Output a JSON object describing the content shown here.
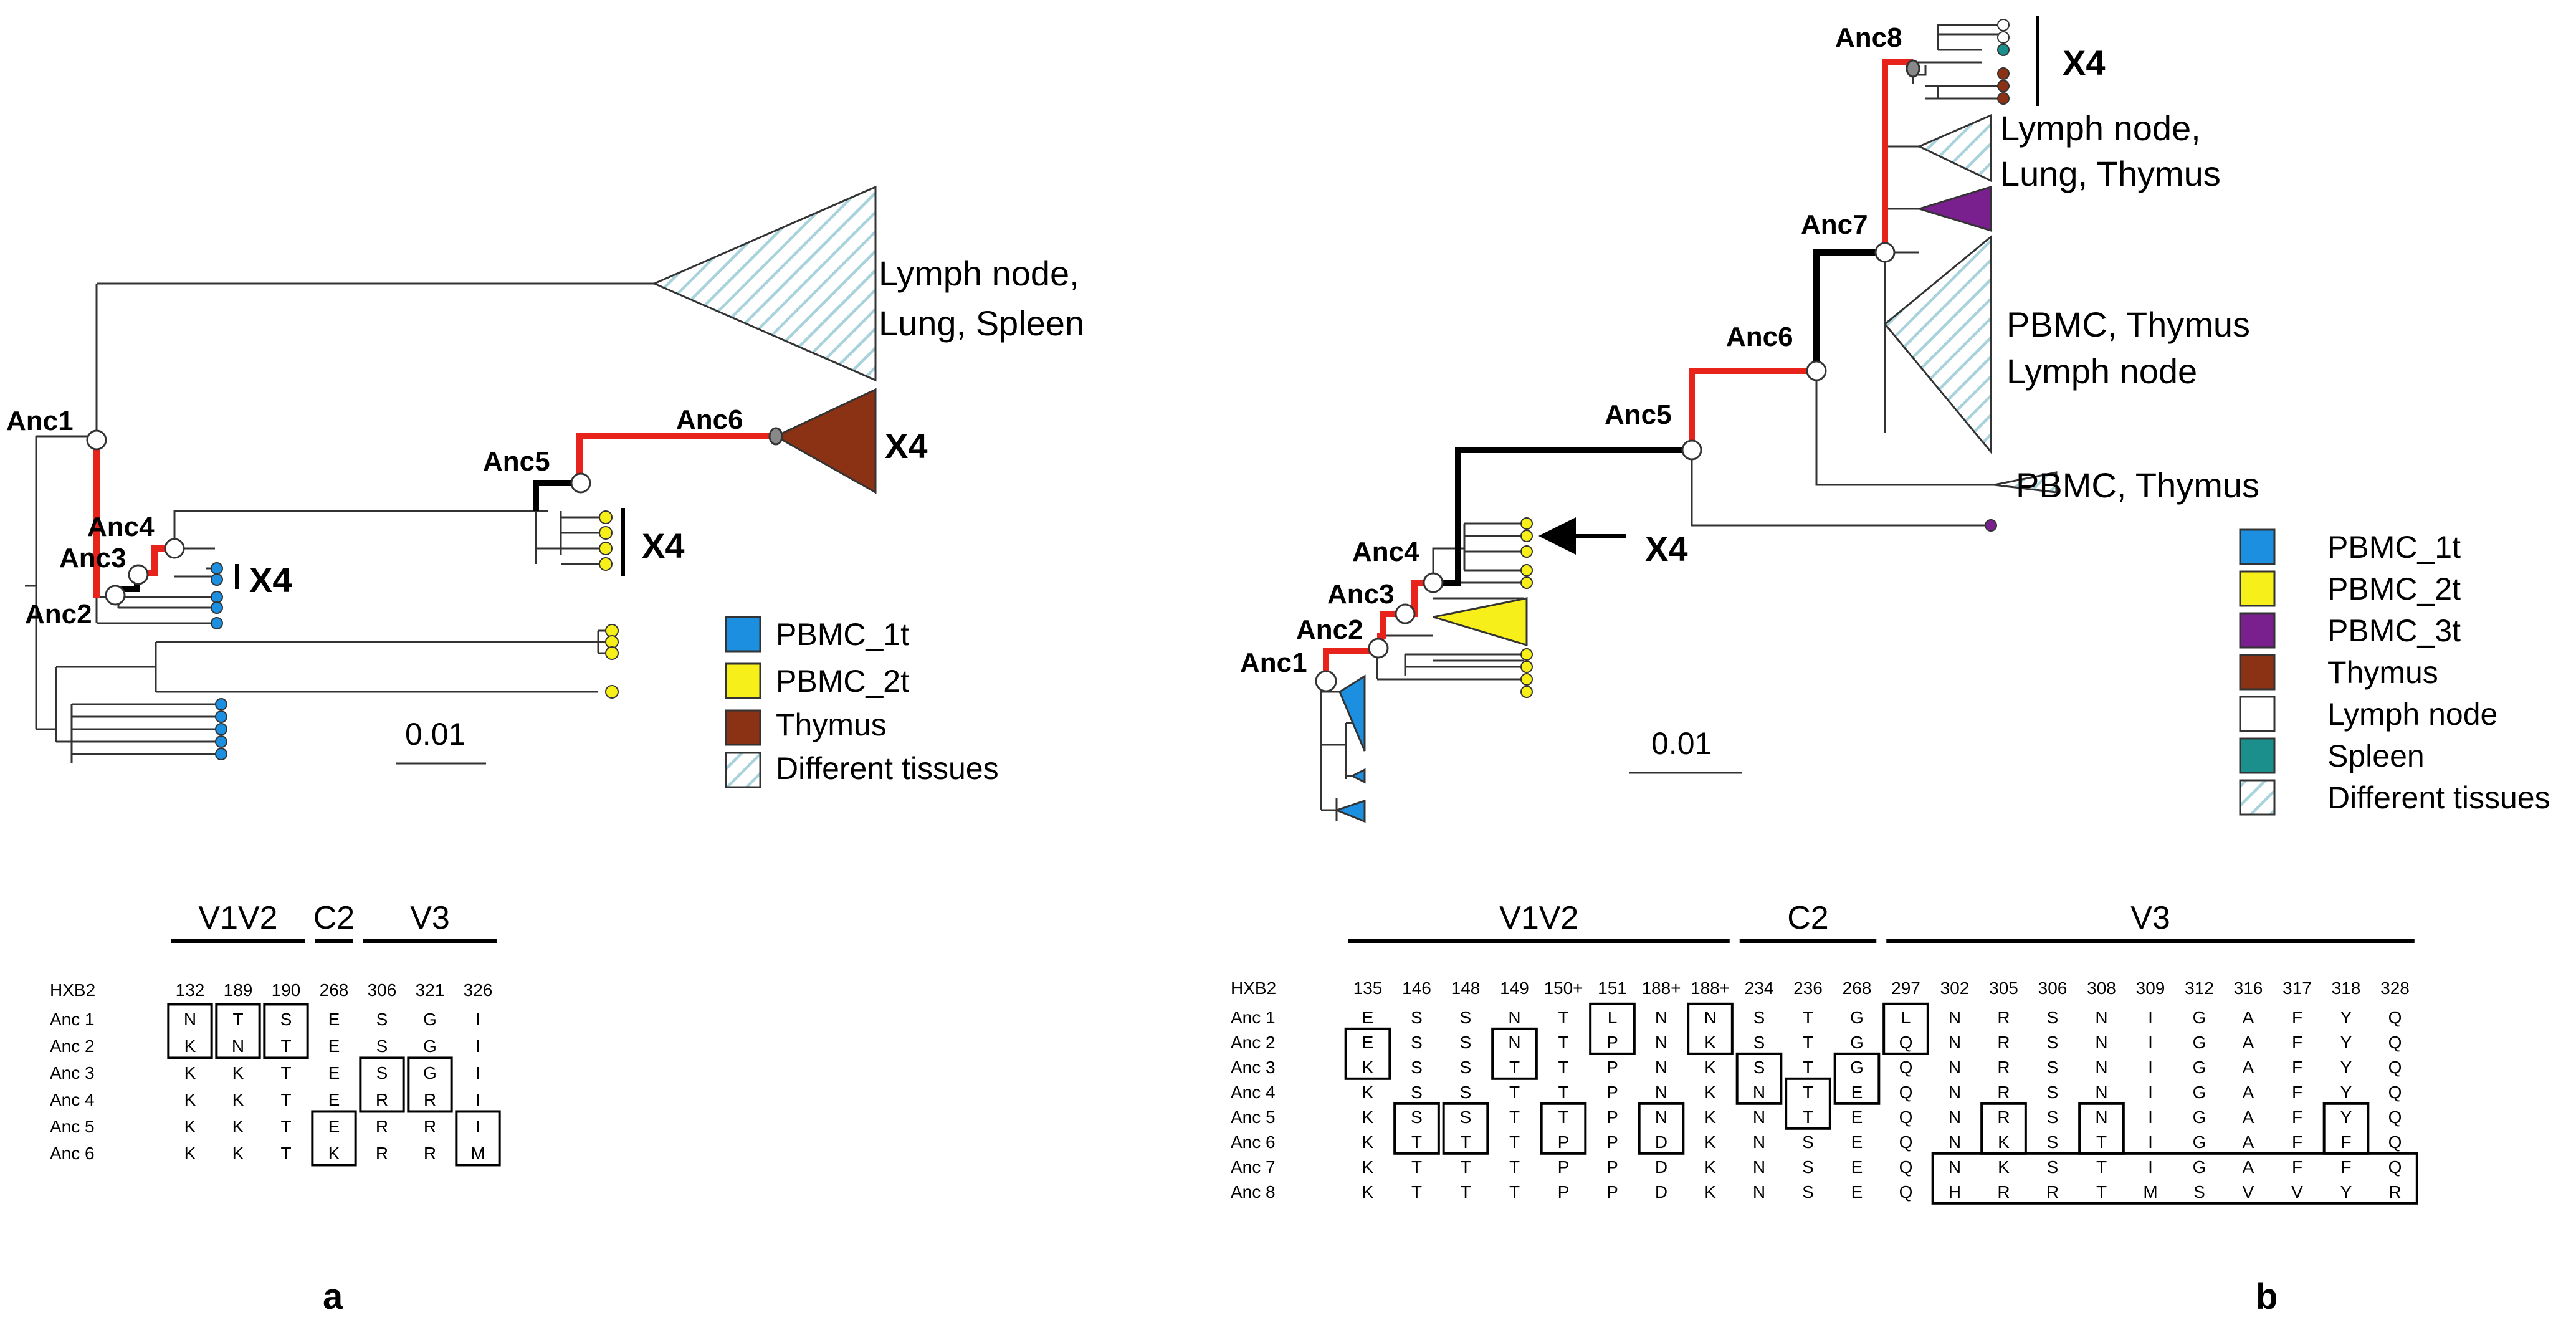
{
  "colors": {
    "pbmc_1t": "#1d8fe0",
    "pbmc_2t": "#f7ef1a",
    "pbmc_3t": "#7a1f8e",
    "thymus": "#8b3214",
    "lymph_node": "#ffffff",
    "spleen": "#1b8f8c",
    "different_tissues": "#d9ecf0",
    "ancestral_branch": "#e8231b"
  },
  "panel_a": {
    "panel_label": "a",
    "nodes": {
      "anc1": "Anc1",
      "anc2": "Anc2",
      "anc3": "Anc3",
      "anc4": "Anc4",
      "anc5": "Anc5",
      "anc6": "Anc6"
    },
    "x4_labels": [
      "X4",
      "X4",
      "X4"
    ],
    "tissue_lines": [
      "Lymph node,",
      "Lung, Spleen"
    ],
    "scale": "0.01",
    "legend": [
      "PBMC_1t",
      "PBMC_2t",
      "Thymus",
      "Different tissues"
    ],
    "regions": [
      "V1V2",
      "C2",
      "V3"
    ],
    "ref_label": "HXB2",
    "positions": [
      "132",
      "189",
      "190",
      "268",
      "306",
      "321",
      "326"
    ],
    "rows": [
      {
        "name": "Anc 1",
        "residues": [
          "N",
          "T",
          "S",
          "E",
          "S",
          "G",
          "I"
        ]
      },
      {
        "name": "Anc 2",
        "residues": [
          "K",
          "N",
          "T",
          "E",
          "S",
          "G",
          "I"
        ]
      },
      {
        "name": "Anc 3",
        "residues": [
          "K",
          "K",
          "T",
          "E",
          "S",
          "G",
          "I"
        ]
      },
      {
        "name": "Anc 4",
        "residues": [
          "K",
          "K",
          "T",
          "E",
          "R",
          "R",
          "I"
        ]
      },
      {
        "name": "Anc 5",
        "residues": [
          "K",
          "K",
          "T",
          "E",
          "R",
          "R",
          "I"
        ]
      },
      {
        "name": "Anc 6",
        "residues": [
          "K",
          "K",
          "T",
          "K",
          "R",
          "R",
          "M"
        ]
      }
    ]
  },
  "panel_b": {
    "panel_label": "b",
    "nodes": {
      "anc1": "Anc1",
      "anc2": "Anc2",
      "anc3": "Anc3",
      "anc4": "Anc4",
      "anc5": "Anc5",
      "anc6": "Anc6",
      "anc7": "Anc7",
      "anc8": "Anc8"
    },
    "x4_labels": [
      "X4",
      "X4"
    ],
    "tissue_groups": [
      [
        "Lymph node,",
        "Lung, Thymus"
      ],
      [
        "PBMC, Thymus",
        "Lymph node"
      ],
      [
        "PBMC, Thymus"
      ]
    ],
    "scale": "0.01",
    "legend": [
      "PBMC_1t",
      "PBMC_2t",
      "PBMC_3t",
      "Thymus",
      "Lymph node",
      "Spleen",
      "Different tissues"
    ],
    "regions": [
      "V1V2",
      "C2",
      "V3"
    ],
    "ref_label": "HXB2",
    "positions": [
      "135",
      "146",
      "148",
      "149",
      "150+",
      "151",
      "188+",
      "188+",
      "234",
      "236",
      "268",
      "297",
      "302",
      "305",
      "306",
      "308",
      "309",
      "312",
      "316",
      "317",
      "318",
      "328"
    ],
    "rows": [
      {
        "name": "Anc 1",
        "residues": [
          "E",
          "S",
          "S",
          "N",
          "T",
          "L",
          "N",
          "N",
          "S",
          "T",
          "G",
          "L",
          "N",
          "R",
          "S",
          "N",
          "I",
          "G",
          "A",
          "F",
          "Y",
          "Q"
        ]
      },
      {
        "name": "Anc 2",
        "residues": [
          "E",
          "S",
          "S",
          "N",
          "T",
          "P",
          "N",
          "K",
          "S",
          "T",
          "G",
          "Q",
          "N",
          "R",
          "S",
          "N",
          "I",
          "G",
          "A",
          "F",
          "Y",
          "Q"
        ]
      },
      {
        "name": "Anc 3",
        "residues": [
          "K",
          "S",
          "S",
          "T",
          "T",
          "P",
          "N",
          "K",
          "S",
          "T",
          "G",
          "Q",
          "N",
          "R",
          "S",
          "N",
          "I",
          "G",
          "A",
          "F",
          "Y",
          "Q"
        ]
      },
      {
        "name": "Anc 4",
        "residues": [
          "K",
          "S",
          "S",
          "T",
          "T",
          "P",
          "N",
          "K",
          "N",
          "T",
          "E",
          "Q",
          "N",
          "R",
          "S",
          "N",
          "I",
          "G",
          "A",
          "F",
          "Y",
          "Q"
        ]
      },
      {
        "name": "Anc 5",
        "residues": [
          "K",
          "S",
          "S",
          "T",
          "T",
          "P",
          "N",
          "K",
          "N",
          "T",
          "E",
          "Q",
          "N",
          "R",
          "S",
          "N",
          "I",
          "G",
          "A",
          "F",
          "Y",
          "Q"
        ]
      },
      {
        "name": "Anc 6",
        "residues": [
          "K",
          "T",
          "T",
          "T",
          "P",
          "P",
          "D",
          "K",
          "N",
          "S",
          "E",
          "Q",
          "N",
          "K",
          "S",
          "T",
          "I",
          "G",
          "A",
          "F",
          "F",
          "Q"
        ]
      },
      {
        "name": "Anc 7",
        "residues": [
          "K",
          "T",
          "T",
          "T",
          "P",
          "P",
          "D",
          "K",
          "N",
          "S",
          "E",
          "Q",
          "N",
          "K",
          "S",
          "T",
          "I",
          "G",
          "A",
          "F",
          "F",
          "Q"
        ]
      },
      {
        "name": "Anc 8",
        "residues": [
          "K",
          "T",
          "T",
          "T",
          "P",
          "P",
          "D",
          "K",
          "N",
          "S",
          "E",
          "Q",
          "H",
          "R",
          "R",
          "T",
          "M",
          "S",
          "V",
          "V",
          "Y",
          "R"
        ]
      }
    ]
  }
}
